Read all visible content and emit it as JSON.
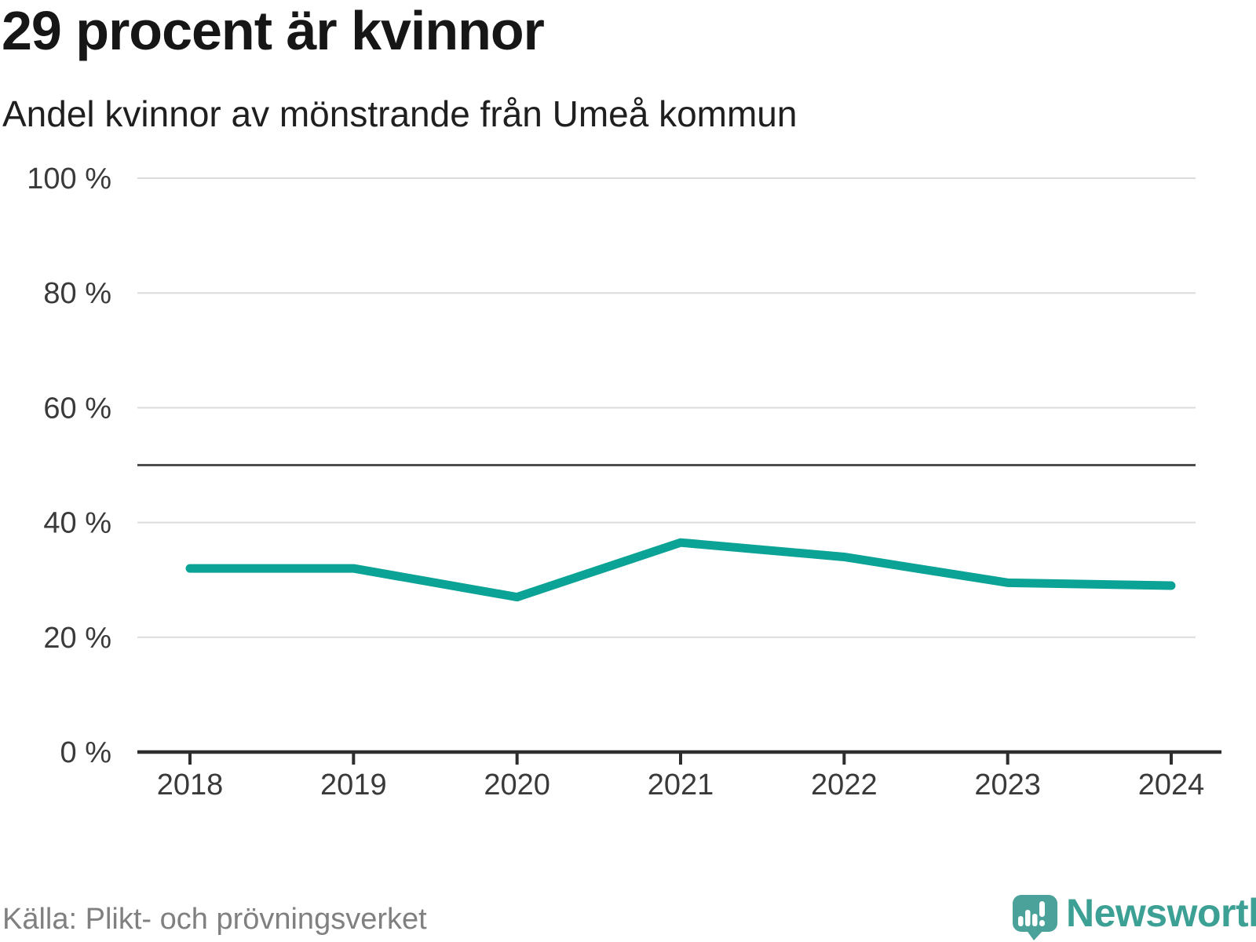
{
  "header": {
    "title": "29 procent är kvinnor",
    "subtitle": "Andel kvinnor av mönstrande från Umeå kommun"
  },
  "chart_data": {
    "type": "line",
    "title": "29 procent är kvinnor",
    "subtitle": "Andel kvinnor av mönstrande från Umeå kommun",
    "categories": [
      "2018",
      "2019",
      "2020",
      "2021",
      "2022",
      "2023",
      "2024"
    ],
    "series": [
      {
        "name": "Andel kvinnor av mönstrande från Umeå kommun",
        "values": [
          32,
          32,
          27,
          36.5,
          34,
          29.5,
          29
        ]
      }
    ],
    "unit": "%",
    "ylim": [
      0,
      100
    ],
    "yticks": [
      0,
      20,
      40,
      60,
      80,
      100
    ],
    "ytick_suffix": " %",
    "reference_line": 50,
    "grid": "horizontal",
    "legend": "none",
    "line_color": "#0aa396",
    "gridline_color": "#dcdcdc",
    "reference_line_color": "#4d4d4d",
    "axis_color": "#2e2e2e",
    "tick_label_color": "#3a3a3a"
  },
  "footer": {
    "source": "Källa: Plikt- och prövningsverket",
    "brand": "Newsworthy",
    "brand_color": "#3da095",
    "logo_icon": "speech-bubble-bar-chart-exclamation"
  }
}
